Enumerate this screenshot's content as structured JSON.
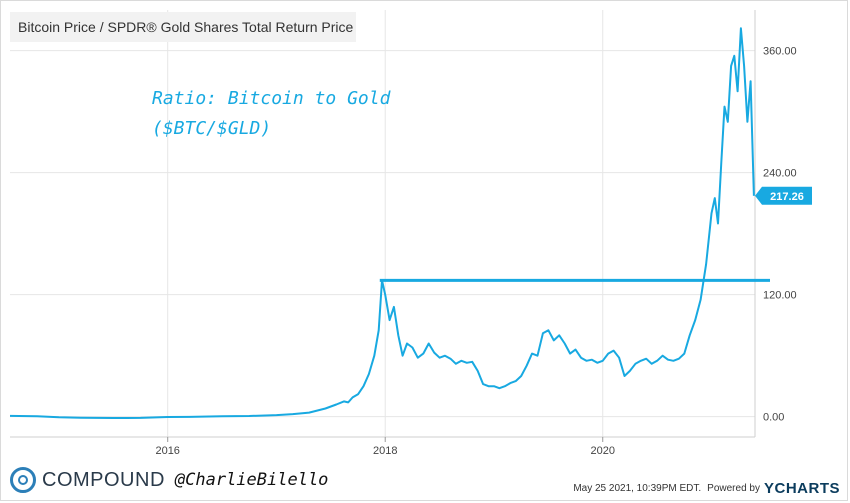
{
  "header": {
    "title": "Bitcoin Price / SPDR® Gold Shares Total Return Price"
  },
  "annotation": {
    "line1": "Ratio: Bitcoin to Gold",
    "line2": "($BTC/$GLD)"
  },
  "footer": {
    "brand": "COMPOUND",
    "handle": "@CharlieBilello",
    "timestamp": "May 25 2021, 10:39PM EDT.",
    "powered_by": "Powered by",
    "provider": "YCHARTS"
  },
  "colors": {
    "line": "#18a9e1",
    "grid": "#e6e6e6",
    "brand": "#2c7fb8"
  },
  "chart_data": {
    "type": "line",
    "title": "Bitcoin Price / SPDR® Gold Shares Total Return Price",
    "xlabel": "",
    "ylabel": "",
    "xlim": [
      2014.55,
      2021.4
    ],
    "ylim": [
      -20,
      400
    ],
    "y_ticks": [
      "0.00",
      "120.00",
      "240.00",
      "360.00"
    ],
    "y_tick_values": [
      0,
      120,
      240,
      360
    ],
    "x_ticks": [
      "2016",
      "2018",
      "2020"
    ],
    "x_tick_values": [
      2016,
      2018,
      2020
    ],
    "grid": true,
    "last_value": 217.26,
    "last_value_label": "217.26",
    "reference_level": 134,
    "series": [
      {
        "values": [
          [
            2014.55,
            0.8
          ],
          [
            2014.8,
            0.5
          ],
          [
            2015.0,
            -0.5
          ],
          [
            2015.2,
            -1.0
          ],
          [
            2015.5,
            -1.3
          ],
          [
            2015.75,
            -1.2
          ],
          [
            2016.0,
            -0.3
          ],
          [
            2016.2,
            -0.2
          ],
          [
            2016.5,
            0.5
          ],
          [
            2016.75,
            0.7
          ],
          [
            2017.0,
            1.5
          ],
          [
            2017.15,
            2.5
          ],
          [
            2017.3,
            4
          ],
          [
            2017.45,
            8
          ],
          [
            2017.55,
            12
          ],
          [
            2017.62,
            15
          ],
          [
            2017.66,
            14
          ],
          [
            2017.7,
            19
          ],
          [
            2017.75,
            22
          ],
          [
            2017.8,
            30
          ],
          [
            2017.85,
            42
          ],
          [
            2017.9,
            60
          ],
          [
            2017.94,
            85
          ],
          [
            2017.97,
            134
          ],
          [
            2018.0,
            120
          ],
          [
            2018.04,
            95
          ],
          [
            2018.08,
            108
          ],
          [
            2018.12,
            80
          ],
          [
            2018.16,
            60
          ],
          [
            2018.2,
            72
          ],
          [
            2018.25,
            68
          ],
          [
            2018.3,
            58
          ],
          [
            2018.35,
            62
          ],
          [
            2018.4,
            72
          ],
          [
            2018.45,
            63
          ],
          [
            2018.5,
            58
          ],
          [
            2018.55,
            60
          ],
          [
            2018.6,
            57
          ],
          [
            2018.65,
            52
          ],
          [
            2018.7,
            55
          ],
          [
            2018.75,
            53
          ],
          [
            2018.8,
            54
          ],
          [
            2018.85,
            45
          ],
          [
            2018.9,
            32
          ],
          [
            2018.95,
            30
          ],
          [
            2019.0,
            30
          ],
          [
            2019.05,
            28
          ],
          [
            2019.1,
            30
          ],
          [
            2019.15,
            33
          ],
          [
            2019.2,
            35
          ],
          [
            2019.25,
            40
          ],
          [
            2019.3,
            50
          ],
          [
            2019.35,
            62
          ],
          [
            2019.4,
            60
          ],
          [
            2019.45,
            82
          ],
          [
            2019.5,
            85
          ],
          [
            2019.55,
            75
          ],
          [
            2019.6,
            80
          ],
          [
            2019.65,
            72
          ],
          [
            2019.7,
            62
          ],
          [
            2019.75,
            66
          ],
          [
            2019.8,
            58
          ],
          [
            2019.85,
            55
          ],
          [
            2019.9,
            56
          ],
          [
            2019.95,
            53
          ],
          [
            2020.0,
            55
          ],
          [
            2020.05,
            62
          ],
          [
            2020.1,
            65
          ],
          [
            2020.15,
            58
          ],
          [
            2020.2,
            40
          ],
          [
            2020.25,
            45
          ],
          [
            2020.3,
            52
          ],
          [
            2020.35,
            55
          ],
          [
            2020.4,
            57
          ],
          [
            2020.45,
            52
          ],
          [
            2020.5,
            55
          ],
          [
            2020.55,
            60
          ],
          [
            2020.6,
            56
          ],
          [
            2020.65,
            55
          ],
          [
            2020.7,
            57
          ],
          [
            2020.75,
            62
          ],
          [
            2020.8,
            80
          ],
          [
            2020.85,
            95
          ],
          [
            2020.9,
            115
          ],
          [
            2020.95,
            150
          ],
          [
            2021.0,
            200
          ],
          [
            2021.03,
            215
          ],
          [
            2021.06,
            190
          ],
          [
            2021.09,
            250
          ],
          [
            2021.12,
            305
          ],
          [
            2021.15,
            290
          ],
          [
            2021.18,
            345
          ],
          [
            2021.21,
            355
          ],
          [
            2021.24,
            320
          ],
          [
            2021.27,
            382
          ],
          [
            2021.3,
            345
          ],
          [
            2021.33,
            290
          ],
          [
            2021.36,
            330
          ],
          [
            2021.39,
            217.26
          ]
        ]
      }
    ]
  }
}
